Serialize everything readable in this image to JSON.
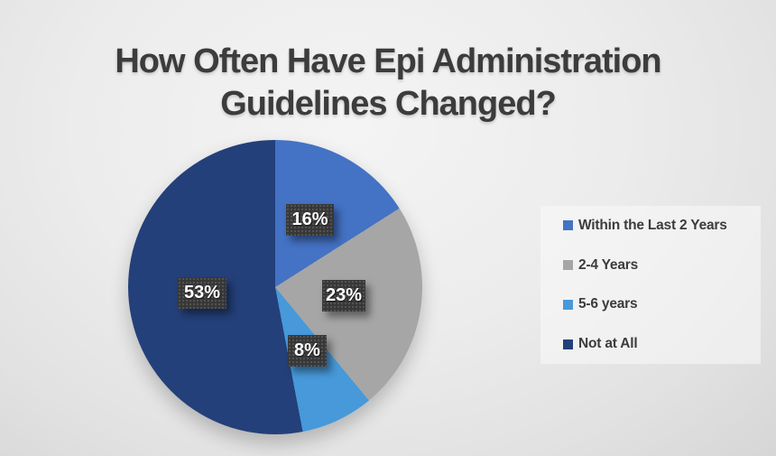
{
  "title": {
    "line1": "How Often Have Epi Administration",
    "line2": "Guidelines Changed?",
    "full": "How Often Have Epi Administration Guidelines Changed?"
  },
  "chart_data": {
    "type": "pie",
    "title": "How Often Have Epi Administration Guidelines Changed?",
    "categories": [
      "Within the Last 2 Years",
      "2-4 Years",
      "5-6 years",
      "Not at All"
    ],
    "values": [
      16,
      23,
      8,
      53
    ],
    "unit": "%",
    "colors": [
      "#4472C4",
      "#A6A6A6",
      "#4799D9",
      "#24407A"
    ],
    "data_labels": [
      "16%",
      "23%",
      "8%",
      "53%"
    ],
    "start_angle_deg": 0,
    "direction": "clockwise",
    "legend_position": "right",
    "label_style": {
      "background": "#373737",
      "text_color": "#FFFFFF"
    }
  },
  "legend": {
    "items": [
      {
        "label": "Within the Last 2 Years",
        "color": "#4472C4"
      },
      {
        "label": "2-4 Years",
        "color": "#A6A6A6"
      },
      {
        "label": "5-6 years",
        "color": "#4799D9"
      },
      {
        "label": "Not at All",
        "color": "#24407A"
      }
    ]
  }
}
